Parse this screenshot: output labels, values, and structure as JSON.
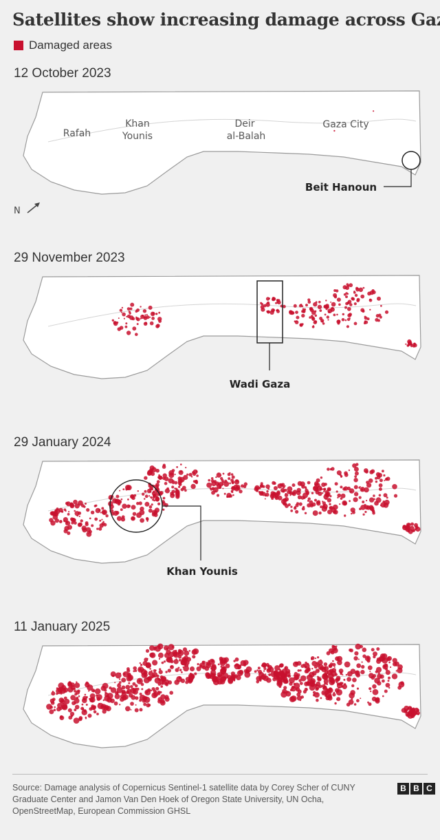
{
  "title": "Satellites show increasing damage across Gaza",
  "legend": {
    "label": "Damaged areas",
    "color": "#c8102e"
  },
  "panels": [
    {
      "date": "12 October 2023",
      "damage_level": 0.05,
      "places": [
        "Rafah",
        "Khan",
        "Younis",
        "Deir",
        "al-Balah",
        "Gaza City"
      ],
      "callout": "Beit Hanoun",
      "north_label": "N"
    },
    {
      "date": "29 November 2023",
      "damage_level": 0.35,
      "callout": "Wadi Gaza"
    },
    {
      "date": "29 January 2024",
      "damage_level": 0.6,
      "callout": "Khan Younis"
    },
    {
      "date": "11 January 2025",
      "damage_level": 0.85
    }
  ],
  "source": "Source: Damage analysis of Copernicus Sentinel-1 satellite data by Corey Scher of CUNY Graduate Center and Jamon Van Den Hoek of Oregon State University, UN Ocha, OpenStreetMap, European Commission GHSL",
  "logo": [
    "B",
    "B",
    "C"
  ]
}
